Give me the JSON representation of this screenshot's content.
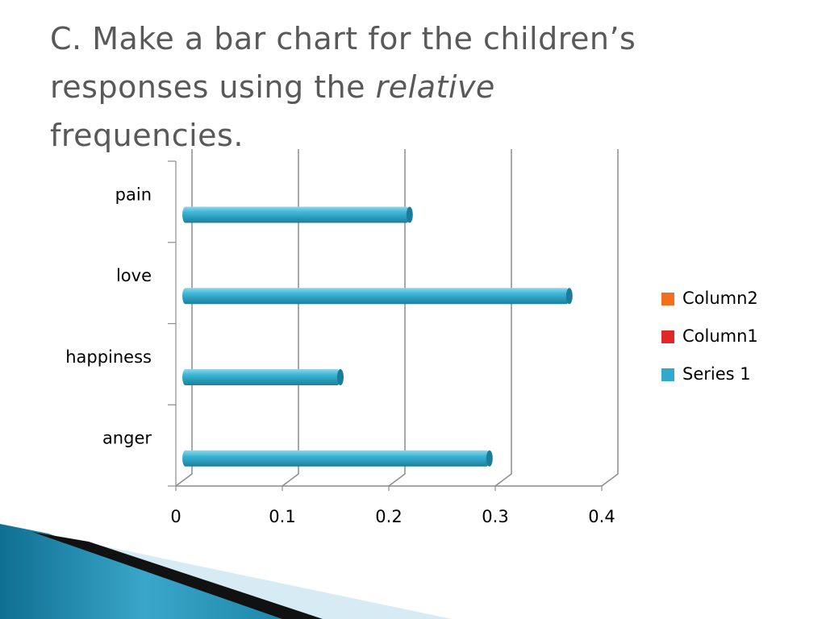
{
  "slide": {
    "title_line1": "C.  Make a bar chart for the children’s",
    "title_line2_prefix": "responses using the ",
    "title_line2_italic": "relative",
    "title_line3": "frequencies."
  },
  "chart_data": {
    "type": "bar",
    "orientation": "horizontal",
    "categories": [
      "anger",
      "happiness",
      "love",
      "pain"
    ],
    "series": [
      {
        "name": "Series 1",
        "values": [
          0.29,
          0.15,
          0.365,
          0.215
        ],
        "color": "#31a9c8"
      }
    ],
    "legend": [
      {
        "name": "Column2",
        "color": "#f07020"
      },
      {
        "name": "Column1",
        "color": "#e02828"
      },
      {
        "name": "Series 1",
        "color": "#31a9c8"
      }
    ],
    "legend_position": "right",
    "xlim": [
      0,
      0.4
    ],
    "xticks": [
      "0",
      "0.1",
      "0.2",
      "0.3",
      "0.4"
    ],
    "grid": true,
    "style": "3d"
  },
  "colors": {
    "bar": "#31a9c8",
    "bar_dark": "#1c7f9c",
    "grid": "#8c8c8c",
    "swoosh_blue": "#1d86a8",
    "swoosh_light": "#cfe7f0"
  }
}
